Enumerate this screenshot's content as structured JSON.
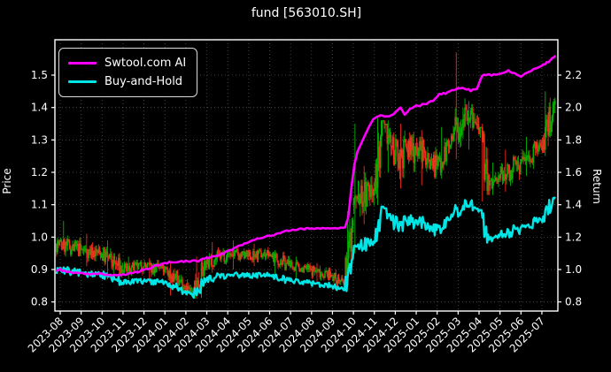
{
  "title": "fund [563010.SH]",
  "legend": {
    "items": [
      {
        "label": "Swtool.com AI",
        "color": "#ff00ff"
      },
      {
        "label": "Buy-and-Hold",
        "color": "#00e5e5"
      }
    ]
  },
  "colors": {
    "background": "#000000",
    "frame": "#ffffff",
    "grid": "rgba(255,255,255,0.32)",
    "text": "#ffffff",
    "ai_line": "#ff00ff",
    "buy_hold_line": "#00e5e5",
    "candle_up": "#00b400",
    "candle_down": "#f5281e"
  },
  "chart_data": {
    "type": "candlestick+line",
    "title": "fund [563010.SH]",
    "grid": true,
    "legend_position": "upper-left",
    "left_axis": {
      "label": "Price",
      "range": [
        0.74,
        1.61
      ],
      "ticks": [
        0.8,
        0.9,
        1.0,
        1.1,
        1.2,
        1.3,
        1.4,
        1.5
      ]
    },
    "right_axis": {
      "label": "Return",
      "range": [
        0.68,
        2.42
      ],
      "ticks": [
        0.8,
        1.0,
        1.2,
        1.4,
        1.6,
        1.8,
        2.0,
        2.2
      ]
    },
    "x_axis": {
      "tick_labels": [
        "2023-08",
        "2023-09",
        "2023-10",
        "2023-11",
        "2023-12",
        "2024-01",
        "2024-02",
        "2024-03",
        "2024-04",
        "2024-05",
        "2024-06",
        "2024-07",
        "2024-08",
        "2024-09",
        "2024-10",
        "2024-11",
        "2024-12",
        "2025-01",
        "2025-02",
        "2025-03",
        "2025-04",
        "2025-05",
        "2025-06",
        "2025-07"
      ]
    },
    "series": [
      {
        "name": "Swtool.com AI",
        "axis": "return",
        "type": "line",
        "color": "#ff00ff",
        "points": [
          [
            -0.2,
            0.995
          ],
          [
            0,
            1.0
          ],
          [
            0.2,
            0.99
          ],
          [
            0.5,
            0.985
          ],
          [
            0.8,
            0.98
          ],
          [
            1.1,
            0.975
          ],
          [
            1.5,
            0.97
          ],
          [
            1.9,
            0.972
          ],
          [
            2.3,
            0.968
          ],
          [
            2.7,
            0.965
          ],
          [
            3.0,
            0.968
          ],
          [
            3.4,
            0.975
          ],
          [
            3.8,
            0.99
          ],
          [
            4.2,
            1.005
          ],
          [
            4.6,
            1.025
          ],
          [
            5.0,
            1.04
          ],
          [
            5.4,
            1.048
          ],
          [
            5.8,
            1.05
          ],
          [
            6.2,
            1.052
          ],
          [
            6.6,
            1.055
          ],
          [
            7.0,
            1.07
          ],
          [
            7.4,
            1.085
          ],
          [
            7.8,
            1.1
          ],
          [
            8.2,
            1.125
          ],
          [
            8.6,
            1.15
          ],
          [
            9.0,
            1.17
          ],
          [
            9.4,
            1.19
          ],
          [
            9.8,
            1.205
          ],
          [
            10.2,
            1.215
          ],
          [
            10.6,
            1.23
          ],
          [
            11.0,
            1.245
          ],
          [
            11.4,
            1.25
          ],
          [
            12.0,
            1.253
          ],
          [
            12.6,
            1.256
          ],
          [
            13.2,
            1.258
          ],
          [
            13.6,
            1.26
          ],
          [
            13.75,
            1.32
          ],
          [
            13.9,
            1.5
          ],
          [
            14.05,
            1.65
          ],
          [
            14.2,
            1.73
          ],
          [
            14.45,
            1.8
          ],
          [
            14.7,
            1.87
          ],
          [
            14.95,
            1.93
          ],
          [
            15.3,
            1.95
          ],
          [
            15.7,
            1.945
          ],
          [
            16.0,
            1.97
          ],
          [
            16.25,
            2.0
          ],
          [
            16.45,
            1.955
          ],
          [
            16.7,
            1.99
          ],
          [
            17.0,
            2.01
          ],
          [
            17.4,
            2.02
          ],
          [
            17.8,
            2.04
          ],
          [
            18.1,
            2.08
          ],
          [
            18.5,
            2.09
          ],
          [
            18.9,
            2.115
          ],
          [
            19.3,
            2.12
          ],
          [
            19.6,
            2.105
          ],
          [
            19.9,
            2.115
          ],
          [
            20.15,
            2.2
          ],
          [
            20.6,
            2.2
          ],
          [
            21.0,
            2.205
          ],
          [
            21.4,
            2.225
          ],
          [
            21.7,
            2.21
          ],
          [
            22.0,
            2.19
          ],
          [
            22.3,
            2.22
          ],
          [
            22.6,
            2.235
          ],
          [
            22.9,
            2.255
          ],
          [
            23.15,
            2.27
          ],
          [
            23.4,
            2.29
          ],
          [
            23.65,
            2.32
          ]
        ]
      },
      {
        "name": "Buy-and-Hold",
        "axis": "return",
        "type": "line",
        "color": "#00e5e5",
        "derived_from": "candle_closes",
        "initial_price": 0.98,
        "monthly_values": [
          [
            "2023-08",
            1.0
          ],
          [
            "2023-09",
            0.97
          ],
          [
            "2023-10",
            0.92
          ],
          [
            "2023-11",
            0.93
          ],
          [
            "2023-12",
            0.92
          ],
          [
            "2024-01",
            0.87
          ],
          [
            "2024-02",
            0.94
          ],
          [
            "2024-03",
            0.97
          ],
          [
            "2024-04",
            0.96
          ],
          [
            "2024-05",
            0.97
          ],
          [
            "2024-06",
            0.93
          ],
          [
            "2024-07",
            0.92
          ],
          [
            "2024-08",
            0.9
          ],
          [
            "2024-09",
            1.07
          ],
          [
            "2024-10",
            1.17
          ],
          [
            "2024-11",
            1.28
          ],
          [
            "2024-12",
            1.31
          ],
          [
            "2025-01",
            1.24
          ],
          [
            "2025-02",
            1.33
          ],
          [
            "2025-03",
            1.36
          ],
          [
            "2025-04",
            1.18
          ],
          [
            "2025-05",
            1.26
          ],
          [
            "2025-06",
            1.31
          ],
          [
            "2025-07",
            1.45
          ]
        ]
      },
      {
        "name": "fund price candles",
        "axis": "price",
        "type": "candlestick",
        "up_color": "#00b400",
        "down_color": "#f5281e",
        "candles_per_month": 21,
        "segments_format": [
          "t_start",
          "t_end",
          "open",
          "close",
          "low_body",
          "high_body",
          "spike_high",
          "spike_low"
        ],
        "segments": [
          [
            -0.2,
            1.0,
            0.98,
            0.96,
            0.94,
            1.02,
            1.05,
            0.94
          ],
          [
            1.0,
            2.0,
            0.96,
            0.95,
            0.92,
            0.99,
            1.01,
            0.91
          ],
          [
            2.0,
            3.0,
            0.95,
            0.9,
            0.875,
            0.97,
            0.99,
            0.87
          ],
          [
            3.0,
            4.0,
            0.9,
            0.91,
            0.875,
            0.93,
            0.94,
            0.87
          ],
          [
            4.0,
            5.0,
            0.91,
            0.9,
            0.87,
            0.93,
            0.935,
            0.86
          ],
          [
            5.0,
            6.0,
            0.9,
            0.85,
            0.83,
            0.91,
            0.92,
            0.82
          ],
          [
            6.0,
            6.35,
            0.85,
            0.82,
            0.795,
            0.86,
            0.87,
            0.795
          ],
          [
            6.35,
            7.0,
            0.82,
            0.92,
            0.81,
            0.93,
            0.94,
            0.81
          ],
          [
            7.0,
            8.0,
            0.92,
            0.95,
            0.9,
            0.97,
            0.985,
            0.89
          ],
          [
            8.0,
            9.0,
            0.95,
            0.94,
            0.91,
            0.97,
            0.99,
            0.9
          ],
          [
            9.0,
            10.0,
            0.94,
            0.95,
            0.92,
            0.97,
            0.98,
            0.91
          ],
          [
            10.0,
            11.0,
            0.95,
            0.91,
            0.89,
            0.955,
            0.96,
            0.88
          ],
          [
            11.0,
            12.0,
            0.91,
            0.9,
            0.88,
            0.93,
            0.94,
            0.875
          ],
          [
            12.0,
            13.0,
            0.9,
            0.88,
            0.86,
            0.915,
            0.92,
            0.855
          ],
          [
            13.0,
            13.6,
            0.88,
            0.855,
            0.84,
            0.89,
            0.9,
            0.835
          ],
          [
            13.6,
            14.0,
            0.855,
            1.05,
            0.85,
            1.06,
            1.08,
            0.845
          ],
          [
            14.0,
            14.35,
            1.1,
            1.12,
            1.02,
            1.28,
            1.35,
            0.95
          ],
          [
            14.35,
            15.0,
            1.12,
            1.15,
            1.05,
            1.2,
            1.22,
            1.04
          ],
          [
            15.0,
            15.5,
            1.15,
            1.35,
            1.12,
            1.36,
            1.37,
            1.1
          ],
          [
            15.5,
            16.0,
            1.35,
            1.25,
            1.22,
            1.35,
            1.36,
            1.2
          ],
          [
            16.0,
            17.0,
            1.25,
            1.28,
            1.17,
            1.33,
            1.35,
            1.15
          ],
          [
            17.0,
            18.0,
            1.28,
            1.22,
            1.18,
            1.31,
            1.33,
            1.16
          ],
          [
            18.0,
            18.75,
            1.22,
            1.3,
            1.19,
            1.32,
            1.34,
            1.18
          ],
          [
            18.75,
            19.35,
            1.3,
            1.4,
            1.26,
            1.43,
            1.57,
            1.24
          ],
          [
            19.35,
            20.0,
            1.4,
            1.33,
            1.28,
            1.41,
            1.42,
            1.27
          ],
          [
            20.0,
            20.5,
            1.33,
            1.16,
            1.13,
            1.34,
            1.35,
            1.11
          ],
          [
            20.5,
            21.0,
            1.16,
            1.18,
            1.14,
            1.22,
            1.23,
            1.13
          ],
          [
            21.0,
            22.0,
            1.18,
            1.23,
            1.15,
            1.26,
            1.27,
            1.14
          ],
          [
            22.0,
            23.0,
            1.23,
            1.28,
            1.2,
            1.3,
            1.31,
            1.19
          ],
          [
            23.0,
            23.65,
            1.28,
            1.42,
            1.26,
            1.43,
            1.45,
            1.25
          ]
        ]
      }
    ]
  }
}
